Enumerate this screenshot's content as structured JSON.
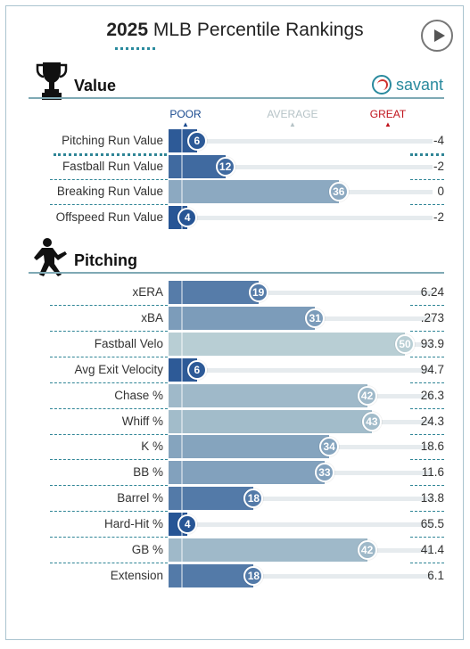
{
  "header": {
    "title_year": "2025",
    "title_rest": " MLB Percentile Rankings"
  },
  "value_section": {
    "title": "Value",
    "brand": "savant",
    "legend": {
      "poor": "POOR",
      "average": "AVERAGE",
      "great": "GREAT"
    },
    "colors": {
      "poor": "#1a4a8f",
      "average": "#bfc8cc",
      "great": "#c0141d"
    },
    "rows": [
      {
        "label": "Pitching Run Value",
        "percentile": "6",
        "value": "-4"
      },
      {
        "label": "Fastball Run Value",
        "percentile": "12",
        "value": "-2"
      },
      {
        "label": "Breaking Run Value",
        "percentile": "36",
        "value": "0"
      },
      {
        "label": "Offspeed Run Value",
        "percentile": "4",
        "value": "-2"
      }
    ]
  },
  "pitching_section": {
    "title": "Pitching",
    "rows": [
      {
        "label": "xERA",
        "percentile": "19",
        "value": "6.24"
      },
      {
        "label": "xBA",
        "percentile": "31",
        "value": ".273"
      },
      {
        "label": "Fastball Velo",
        "percentile": "50",
        "value": "93.9"
      },
      {
        "label": "Avg Exit Velocity",
        "percentile": "6",
        "value": "94.7"
      },
      {
        "label": "Chase %",
        "percentile": "42",
        "value": "26.3"
      },
      {
        "label": "Whiff %",
        "percentile": "43",
        "value": "24.3"
      },
      {
        "label": "K %",
        "percentile": "34",
        "value": "18.6"
      },
      {
        "label": "BB %",
        "percentile": "33",
        "value": "11.6"
      },
      {
        "label": "Barrel %",
        "percentile": "18",
        "value": "13.8"
      },
      {
        "label": "Hard-Hit %",
        "percentile": "4",
        "value": "65.5"
      },
      {
        "label": "GB %",
        "percentile": "42",
        "value": "41.4"
      },
      {
        "label": "Extension",
        "percentile": "18",
        "value": "6.1"
      }
    ]
  },
  "icons": {
    "trophy": "trophy-icon",
    "pitcher": "pitcher-icon",
    "play": "play-icon",
    "savant_logo": "savant-baseball-icon"
  }
}
